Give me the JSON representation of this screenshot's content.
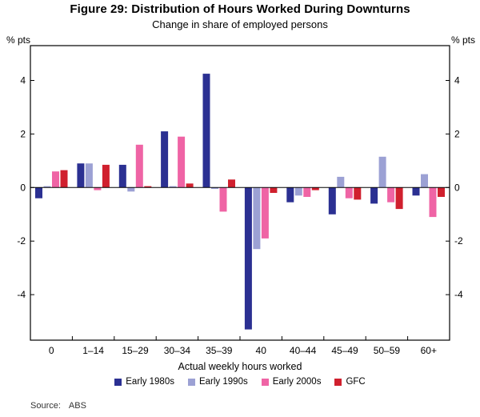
{
  "title": "Figure 29: Distribution of Hours Worked During Downturns",
  "subtitle": "Change in share of employed persons",
  "axes": {
    "left_unit": "% pts",
    "right_unit": "% pts",
    "x_title": "Actual weekly hours worked"
  },
  "source": {
    "label": "Source:",
    "value": "ABS"
  },
  "chart_data": {
    "type": "bar",
    "categories": [
      "0",
      "1–14",
      "15–29",
      "30–34",
      "35–39",
      "40",
      "40–44",
      "45–49",
      "50–59",
      "60+"
    ],
    "series": [
      {
        "name": "Early 1980s",
        "color": "#2b3092",
        "values": [
          -0.4,
          0.9,
          0.85,
          2.1,
          4.25,
          -5.3,
          -0.55,
          -1.0,
          -0.6,
          -0.3
        ]
      },
      {
        "name": "Early 1990s",
        "color": "#9ca1d4",
        "values": [
          0.05,
          0.9,
          -0.15,
          0.05,
          -0.05,
          -2.3,
          -0.3,
          0.4,
          1.15,
          0.5
        ]
      },
      {
        "name": "Early 2000s",
        "color": "#ef64a5",
        "values": [
          0.6,
          -0.1,
          1.6,
          1.9,
          -0.9,
          -1.9,
          -0.35,
          -0.4,
          -0.55,
          -1.1
        ]
      },
      {
        "name": "GFC",
        "color": "#d0202e",
        "values": [
          0.65,
          0.85,
          0.05,
          0.15,
          0.3,
          -0.2,
          -0.1,
          -0.45,
          -0.8,
          -0.35
        ]
      }
    ],
    "ylim": [
      -5.7,
      5.3
    ],
    "yticks": [
      -4,
      -2,
      0,
      2,
      4
    ],
    "grid": false,
    "legend_position": "bottom"
  }
}
